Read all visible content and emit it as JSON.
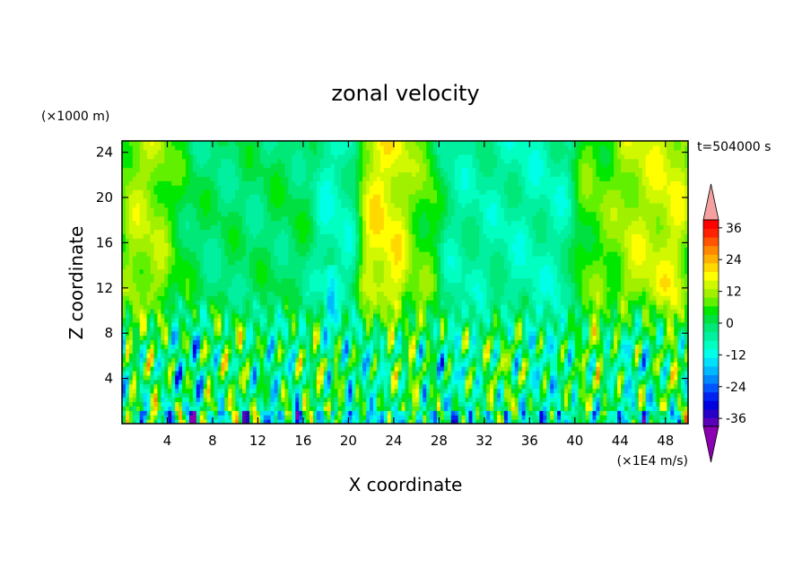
{
  "chart_data": {
    "type": "heatmap",
    "title": "zonal velocity",
    "xlabel": "X coordinate",
    "ylabel": "Z coordinate",
    "x_unit": "(×1E4 m/s)",
    "y_unit": "(×1000 m)",
    "time_label": "t=504000 s",
    "xlim": [
      0,
      50
    ],
    "ylim": [
      0,
      25
    ],
    "x_ticks": [
      4,
      8,
      12,
      16,
      20,
      24,
      28,
      32,
      36,
      40,
      44,
      48
    ],
    "y_ticks": [
      4,
      8,
      12,
      16,
      20,
      24
    ],
    "colorbar": {
      "levels": [
        -42,
        -39,
        -36,
        -33,
        -30,
        -27,
        -24,
        -21,
        -18,
        -15,
        -12,
        -9,
        -6,
        -3,
        0,
        3,
        6,
        9,
        12,
        15,
        18,
        21,
        24,
        27,
        30,
        33,
        36,
        39,
        42
      ],
      "tick_labels": [
        "36",
        "24",
        "12",
        "0",
        "-12",
        "-24",
        "-36"
      ],
      "tick_values": [
        36,
        24,
        12,
        0,
        -12,
        -24,
        -36
      ],
      "colors": [
        "#8b00b0",
        "#5a00b8",
        "#2800c8",
        "#0000e0",
        "#0022f0",
        "#0055ff",
        "#0088ff",
        "#00b8ff",
        "#00e0f8",
        "#00ffe8",
        "#00ffc0",
        "#00f0a0",
        "#00e878",
        "#00e040",
        "#00e800",
        "#60f000",
        "#a0f000",
        "#d0f800",
        "#ffff00",
        "#ffd800",
        "#ffb000",
        "#ff8800",
        "#ff5500",
        "#ff2200",
        "#ff0000",
        "#f5a0a0"
      ],
      "extend": "both"
    },
    "field_description": "zonal velocity u(x,z) in (×1E4 m/s) at t=504000 s; near-surface layer (z<10) shows alternating positive/negative convective cells with values roughly -40..+25; upper layer (z>10) shows broad vertical bands: positive (~0..15) around x=0-6, 20-25, 40-50; negative (~-5..-15) around x=6-20, 28-40"
  }
}
